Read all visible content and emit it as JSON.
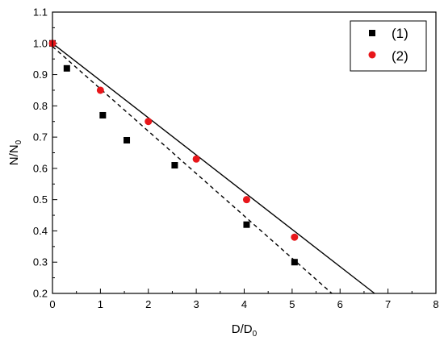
{
  "chart_data": {
    "type": "scatter",
    "title": "",
    "xlabel": {
      "main": "D/D",
      "sub": "0"
    },
    "ylabel": {
      "main": "N/N",
      "sub": "0"
    },
    "xlim": [
      0,
      8
    ],
    "ylim": [
      0.2,
      1.1
    ],
    "x_ticks": [
      0,
      1,
      2,
      3,
      4,
      5,
      6,
      7,
      8
    ],
    "y_ticks": [
      "0.2",
      "0.3",
      "0.4",
      "0.5",
      "0.6",
      "0.7",
      "0.8",
      "0.9",
      "1.0",
      "1.1"
    ],
    "grid": false,
    "legend_position": "top-right",
    "series": [
      {
        "name": "(1)",
        "marker": "square",
        "color": "#000000",
        "points": [
          [
            0,
            1.0
          ],
          [
            0.3,
            0.92
          ],
          [
            1.05,
            0.77
          ],
          [
            1.55,
            0.69
          ],
          [
            2.55,
            0.61
          ],
          [
            4.05,
            0.42
          ],
          [
            5.05,
            0.3
          ]
        ]
      },
      {
        "name": "(2)",
        "marker": "circle",
        "color": "#e8161a",
        "points": [
          [
            0,
            1.0
          ],
          [
            1.0,
            0.85
          ],
          [
            2.0,
            0.75
          ],
          [
            3.0,
            0.63
          ],
          [
            4.05,
            0.5
          ],
          [
            5.05,
            0.38
          ]
        ]
      }
    ],
    "lines": [
      {
        "style": "solid",
        "color": "#000000",
        "from": [
          0,
          1.0
        ],
        "to": [
          6.72,
          0.2
        ]
      },
      {
        "style": "dashed",
        "color": "#000000",
        "from": [
          0,
          0.99
        ],
        "to": [
          5.83,
          0.2
        ]
      }
    ]
  }
}
